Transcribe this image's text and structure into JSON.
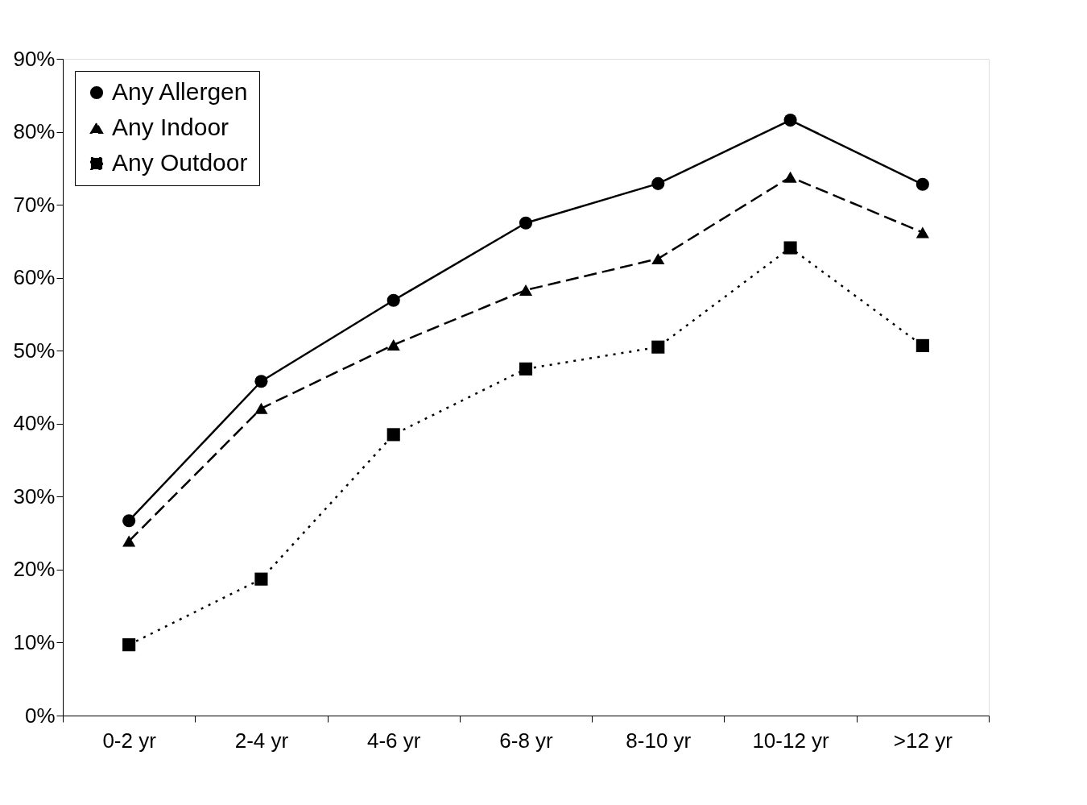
{
  "chart_data": {
    "type": "line",
    "categories": [
      "0-2 yr",
      "2-4 yr",
      "4-6 yr",
      "6-8 yr",
      "8-10 yr",
      "10-12 yr",
      ">12 yr"
    ],
    "series": [
      {
        "name": "Any Allergen",
        "color": "#000000",
        "marker": "circle",
        "line_style": "solid",
        "values": [
          26.7,
          45.8,
          56.9,
          67.5,
          72.9,
          81.6,
          72.8
        ]
      },
      {
        "name": "Any Indoor",
        "color": "#000000",
        "marker": "triangle",
        "line_style": "dashed",
        "values": [
          23.9,
          42.1,
          50.8,
          58.3,
          62.6,
          73.8,
          66.2
        ]
      },
      {
        "name": "Any Outdoor",
        "color": "#000000",
        "marker": "square",
        "line_style": "dotted",
        "values": [
          9.7,
          18.7,
          38.5,
          47.5,
          50.5,
          64.1,
          50.7
        ]
      }
    ],
    "ylim": [
      0,
      90
    ],
    "yticks": [
      {
        "value": 0,
        "label": "0%"
      },
      {
        "value": 10,
        "label": "10%"
      },
      {
        "value": 20,
        "label": "20%"
      },
      {
        "value": 30,
        "label": "30%"
      },
      {
        "value": 40,
        "label": "40%"
      },
      {
        "value": 50,
        "label": "50%"
      },
      {
        "value": 60,
        "label": "60%"
      },
      {
        "value": 70,
        "label": "70%"
      },
      {
        "value": 80,
        "label": "80%"
      },
      {
        "value": 90,
        "label": "90%"
      }
    ],
    "grid": false,
    "legend": "top left"
  }
}
